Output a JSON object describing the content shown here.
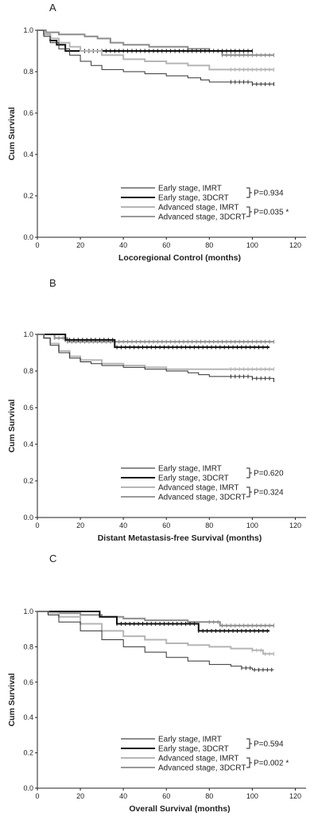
{
  "chart_data": [
    {
      "type": "line",
      "panel": "A",
      "xlabel": "Locoregional Control (months)",
      "ylabel": "Cum Survival",
      "xlim": [
        0,
        125
      ],
      "ylim": [
        0,
        1.0
      ],
      "xticks": [
        0,
        20,
        40,
        60,
        80,
        100,
        120
      ],
      "yticks": [
        0.0,
        0.2,
        0.4,
        0.6,
        0.8,
        1.0
      ],
      "legend_position": "bottom-right",
      "series": [
        {
          "name": "Early stage, IMRT",
          "color": "#8c8c8c",
          "stroke_width": 2,
          "x": [
            0,
            4,
            10,
            22,
            28,
            34,
            40,
            46,
            52,
            58,
            64,
            70,
            76,
            80,
            86,
            100,
            110
          ],
          "y": [
            1.0,
            0.99,
            0.98,
            0.97,
            0.96,
            0.94,
            0.93,
            0.93,
            0.92,
            0.92,
            0.92,
            0.91,
            0.91,
            0.9,
            0.88,
            0.88,
            0.88
          ]
        },
        {
          "name": "Early stage, 3DCRT",
          "color": "#111111",
          "stroke_width": 2,
          "x": [
            0,
            3,
            6,
            9,
            13,
            22,
            80,
            100
          ],
          "y": [
            1.0,
            0.98,
            0.95,
            0.93,
            0.9,
            0.9,
            0.9,
            0.9
          ]
        },
        {
          "name": "Advanced stage, IMRT",
          "color": "#b5b5b5",
          "stroke_width": 2,
          "x": [
            0,
            3,
            6,
            10,
            15,
            20,
            30,
            40,
            50,
            60,
            70,
            80,
            90,
            100,
            110
          ],
          "y": [
            1.0,
            0.98,
            0.96,
            0.94,
            0.92,
            0.9,
            0.88,
            0.86,
            0.85,
            0.84,
            0.83,
            0.81,
            0.81,
            0.81,
            0.81
          ]
        },
        {
          "name": "Advanced stage, 3DCRT",
          "color": "#333333",
          "stroke_width": 1,
          "x": [
            0,
            3,
            6,
            10,
            15,
            20,
            25,
            30,
            40,
            50,
            60,
            70,
            76,
            80,
            90,
            100,
            110
          ],
          "y": [
            1.0,
            0.97,
            0.94,
            0.91,
            0.88,
            0.85,
            0.83,
            0.81,
            0.8,
            0.79,
            0.78,
            0.77,
            0.76,
            0.75,
            0.75,
            0.74,
            0.74
          ]
        }
      ],
      "p_values": [
        {
          "text": "P=0.934"
        },
        {
          "text": "P=0.035 *"
        }
      ]
    },
    {
      "type": "line",
      "panel": "B",
      "xlabel": "Distant Metastasis-free Survival (months)",
      "ylabel": "Cum Survival",
      "xlim": [
        0,
        125
      ],
      "ylim": [
        0,
        1.0
      ],
      "xticks": [
        0,
        20,
        40,
        60,
        80,
        100,
        120
      ],
      "yticks": [
        0.0,
        0.2,
        0.4,
        0.6,
        0.8,
        1.0
      ],
      "legend_position": "bottom-right",
      "series": [
        {
          "name": "Early stage, IMRT",
          "color": "#8c8c8c",
          "stroke_width": 2,
          "x": [
            0,
            8,
            14,
            110
          ],
          "y": [
            1.0,
            0.98,
            0.96,
            0.96
          ]
        },
        {
          "name": "Early stage, 3DCRT",
          "color": "#111111",
          "stroke_width": 2,
          "x": [
            0,
            13,
            36,
            108
          ],
          "y": [
            1.0,
            0.97,
            0.93,
            0.93
          ]
        },
        {
          "name": "Advanced stage, IMRT",
          "color": "#b5b5b5",
          "stroke_width": 2,
          "x": [
            0,
            3,
            6,
            10,
            15,
            20,
            30,
            40,
            50,
            60,
            70,
            80,
            90,
            100,
            110
          ],
          "y": [
            1.0,
            0.98,
            0.95,
            0.91,
            0.88,
            0.86,
            0.84,
            0.83,
            0.82,
            0.81,
            0.81,
            0.81,
            0.81,
            0.81,
            0.81
          ]
        },
        {
          "name": "Advanced stage, 3DCRT",
          "color": "#333333",
          "stroke_width": 1,
          "x": [
            0,
            3,
            6,
            10,
            15,
            20,
            25,
            30,
            40,
            50,
            60,
            70,
            75,
            80,
            90,
            100,
            110
          ],
          "y": [
            1.0,
            0.98,
            0.94,
            0.9,
            0.87,
            0.85,
            0.84,
            0.83,
            0.82,
            0.81,
            0.8,
            0.79,
            0.78,
            0.77,
            0.77,
            0.76,
            0.75
          ]
        }
      ],
      "p_values": [
        {
          "text": "P=0.620"
        },
        {
          "text": "P=0.324"
        }
      ]
    },
    {
      "type": "line",
      "panel": "C",
      "xlabel": "Overall Survival (months)",
      "ylabel": "Cum Survival",
      "xlim": [
        0,
        125
      ],
      "ylim": [
        0,
        1.0
      ],
      "xticks": [
        0,
        20,
        40,
        60,
        80,
        100,
        120
      ],
      "yticks": [
        0.0,
        0.2,
        0.4,
        0.6,
        0.8,
        1.0
      ],
      "legend_position": "bottom-right",
      "series": [
        {
          "name": "Early stage, IMRT",
          "color": "#8c8c8c",
          "stroke_width": 2,
          "x": [
            0,
            10,
            20,
            30,
            40,
            50,
            60,
            70,
            80,
            85,
            110
          ],
          "y": [
            1.0,
            0.99,
            0.98,
            0.97,
            0.96,
            0.95,
            0.95,
            0.94,
            0.94,
            0.92,
            0.92
          ]
        },
        {
          "name": "Early stage, 3DCRT",
          "color": "#111111",
          "stroke_width": 2,
          "x": [
            0,
            29,
            37,
            75,
            108
          ],
          "y": [
            1.0,
            0.97,
            0.93,
            0.89,
            0.89
          ]
        },
        {
          "name": "Advanced stage, IMRT",
          "color": "#b5b5b5",
          "stroke_width": 2,
          "x": [
            0,
            5,
            10,
            20,
            30,
            40,
            50,
            60,
            70,
            80,
            90,
            100,
            105,
            110
          ],
          "y": [
            1.0,
            0.99,
            0.97,
            0.93,
            0.89,
            0.86,
            0.84,
            0.82,
            0.81,
            0.8,
            0.79,
            0.78,
            0.76,
            0.76
          ]
        },
        {
          "name": "Advanced stage, 3DCRT",
          "color": "#333333",
          "stroke_width": 1,
          "x": [
            0,
            5,
            10,
            20,
            30,
            40,
            50,
            60,
            70,
            80,
            90,
            95,
            100,
            110
          ],
          "y": [
            1.0,
            0.98,
            0.94,
            0.89,
            0.84,
            0.8,
            0.77,
            0.74,
            0.72,
            0.7,
            0.69,
            0.68,
            0.67,
            0.67
          ]
        }
      ],
      "p_values": [
        {
          "text": "P=0.594"
        },
        {
          "text": "P=0.002 *"
        }
      ]
    }
  ]
}
